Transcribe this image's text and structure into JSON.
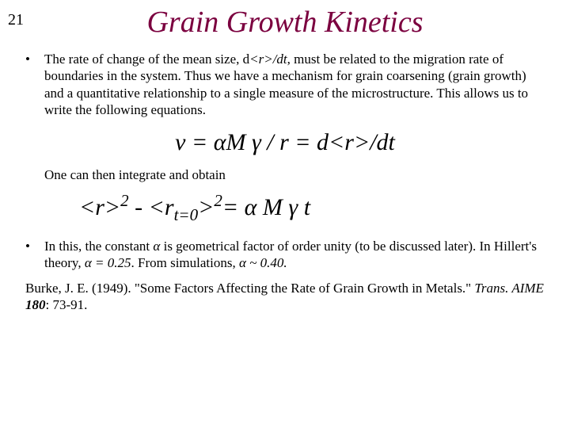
{
  "page_number": "21",
  "title": "Grain Growth Kinetics",
  "title_color": "#7b003f",
  "bullet1_pre": "The rate of change of the mean size, d",
  "bullet1_var": "<r>",
  "bullet1_post": "/dt",
  "bullet1_rest": ", must be related to the migration rate of boundaries in the system.  Thus we have a mechanism for grain coarsening (grain growth) and a quantitative relationship to a single measure of the microstructure.  This allows us to write the following equations.",
  "eq1_lhs": "v = ",
  "eq1_alpha": "α",
  "eq1_M": "M ",
  "eq1_gamma": "γ",
  "eq1_mid": " / r = d",
  "eq1_r": "<r>",
  "eq1_tail": "/dt",
  "integrate_text": "One can then integrate and obtain",
  "eq2_r1": "<r>",
  "eq2_sup2a": "2",
  "eq2_minus": " - ",
  "eq2_r2": "<r",
  "eq2_sub": "t=0",
  "eq2_r2close": ">",
  "eq2_sup2b": "2",
  "eq2_eq": "= ",
  "eq2_alpha": "α",
  "eq2_M": " M ",
  "eq2_gamma": "γ",
  "eq2_t": "  t",
  "bullet2_a": "In this, the constant ",
  "bullet2_alpha1": "α",
  "bullet2_b": " is geometrical factor of order unity (to be discussed later).  In Hillert's theory, ",
  "bullet2_alpha2": "α",
  "bullet2_c": " = 0.25",
  "bullet2_d": ".  From simulations, ",
  "bullet2_alpha3": "α",
  "bullet2_e": " ~ 0.40.",
  "citation_author": "Burke, J. E. (1949). \"Some Factors Affecting the Rate of Grain Growth in Metals.\" ",
  "citation_journal": "Trans. AIME",
  "citation_vol": " 180",
  "citation_pages": ": 73-91.",
  "text_color": "#000000",
  "background_color": "#ffffff",
  "body_fontsize": 17,
  "title_fontsize": 38,
  "equation_fontsize": 30
}
